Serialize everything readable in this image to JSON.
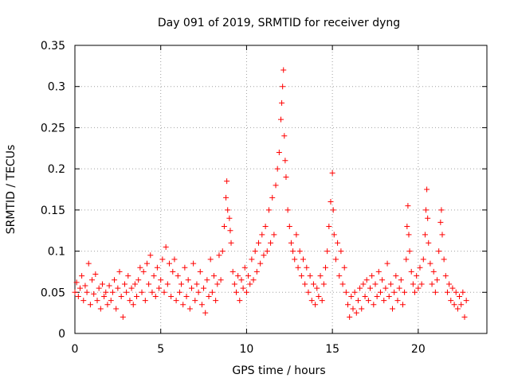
{
  "chart_data": {
    "type": "scatter",
    "title": "Day 091 of 2019, SRMTID for receiver dyng",
    "xlabel": "GPS time / hours",
    "ylabel": "SRMTID / TECUs",
    "xlim": [
      0,
      24
    ],
    "ylim": [
      0,
      0.35
    ],
    "grid": true,
    "marker": "+",
    "color": "#ff0000",
    "x_ticks": [
      0,
      5,
      10,
      15,
      20
    ],
    "x_tick_labels": [
      "0",
      "5",
      "10",
      "15",
      "20"
    ],
    "y_ticks": [
      0,
      0.05,
      0.1,
      0.15,
      0.2,
      0.25,
      0.3,
      0.35
    ],
    "y_tick_labels": [
      "0",
      "0.05",
      "0.1",
      "0.15",
      "0.2",
      "0.25",
      "0.3",
      "0.35"
    ],
    "series": [
      {
        "name": "SRMTID",
        "points": [
          [
            0.0,
            0.05
          ],
          [
            0.1,
            0.062
          ],
          [
            0.2,
            0.045
          ],
          [
            0.3,
            0.055
          ],
          [
            0.4,
            0.07
          ],
          [
            0.5,
            0.04
          ],
          [
            0.6,
            0.058
          ],
          [
            0.7,
            0.05
          ],
          [
            0.8,
            0.085
          ],
          [
            0.9,
            0.035
          ],
          [
            1.0,
            0.065
          ],
          [
            1.1,
            0.048
          ],
          [
            1.2,
            0.072
          ],
          [
            1.3,
            0.04
          ],
          [
            1.4,
            0.055
          ],
          [
            1.5,
            0.03
          ],
          [
            1.6,
            0.06
          ],
          [
            1.7,
            0.045
          ],
          [
            1.8,
            0.05
          ],
          [
            1.9,
            0.035
          ],
          [
            2.0,
            0.058
          ],
          [
            2.1,
            0.04
          ],
          [
            2.2,
            0.05
          ],
          [
            2.3,
            0.065
          ],
          [
            2.4,
            0.03
          ],
          [
            2.5,
            0.055
          ],
          [
            2.6,
            0.075
          ],
          [
            2.7,
            0.045
          ],
          [
            2.8,
            0.02
          ],
          [
            2.9,
            0.06
          ],
          [
            3.0,
            0.05
          ],
          [
            3.1,
            0.07
          ],
          [
            3.2,
            0.04
          ],
          [
            3.3,
            0.055
          ],
          [
            3.4,
            0.035
          ],
          [
            3.5,
            0.06
          ],
          [
            3.6,
            0.045
          ],
          [
            3.7,
            0.065
          ],
          [
            3.8,
            0.08
          ],
          [
            3.9,
            0.05
          ],
          [
            4.0,
            0.075
          ],
          [
            4.1,
            0.04
          ],
          [
            4.2,
            0.085
          ],
          [
            4.3,
            0.06
          ],
          [
            4.4,
            0.095
          ],
          [
            4.5,
            0.05
          ],
          [
            4.6,
            0.07
          ],
          [
            4.7,
            0.045
          ],
          [
            4.8,
            0.08
          ],
          [
            4.9,
            0.055
          ],
          [
            5.0,
            0.065
          ],
          [
            5.1,
            0.09
          ],
          [
            5.2,
            0.05
          ],
          [
            5.3,
            0.105
          ],
          [
            5.4,
            0.06
          ],
          [
            5.5,
            0.085
          ],
          [
            5.6,
            0.045
          ],
          [
            5.7,
            0.075
          ],
          [
            5.8,
            0.09
          ],
          [
            5.9,
            0.04
          ],
          [
            6.0,
            0.07
          ],
          [
            6.1,
            0.05
          ],
          [
            6.2,
            0.06
          ],
          [
            6.3,
            0.035
          ],
          [
            6.4,
            0.08
          ],
          [
            6.5,
            0.045
          ],
          [
            6.6,
            0.065
          ],
          [
            6.7,
            0.03
          ],
          [
            6.8,
            0.055
          ],
          [
            6.9,
            0.085
          ],
          [
            7.0,
            0.04
          ],
          [
            7.1,
            0.06
          ],
          [
            7.2,
            0.05
          ],
          [
            7.3,
            0.075
          ],
          [
            7.4,
            0.035
          ],
          [
            7.5,
            0.055
          ],
          [
            7.6,
            0.025
          ],
          [
            7.7,
            0.065
          ],
          [
            7.8,
            0.045
          ],
          [
            7.9,
            0.09
          ],
          [
            8.0,
            0.05
          ],
          [
            8.1,
            0.07
          ],
          [
            8.2,
            0.04
          ],
          [
            8.3,
            0.06
          ],
          [
            8.4,
            0.095
          ],
          [
            8.5,
            0.065
          ],
          [
            8.6,
            0.1
          ],
          [
            8.7,
            0.13
          ],
          [
            8.8,
            0.165
          ],
          [
            8.85,
            0.185
          ],
          [
            8.9,
            0.15
          ],
          [
            9.0,
            0.14
          ],
          [
            9.05,
            0.125
          ],
          [
            9.1,
            0.11
          ],
          [
            9.2,
            0.075
          ],
          [
            9.3,
            0.06
          ],
          [
            9.4,
            0.05
          ],
          [
            9.5,
            0.07
          ],
          [
            9.6,
            0.04
          ],
          [
            9.7,
            0.065
          ],
          [
            9.8,
            0.055
          ],
          [
            9.9,
            0.08
          ],
          [
            10.0,
            0.05
          ],
          [
            10.1,
            0.07
          ],
          [
            10.2,
            0.06
          ],
          [
            10.3,
            0.09
          ],
          [
            10.4,
            0.065
          ],
          [
            10.5,
            0.1
          ],
          [
            10.6,
            0.075
          ],
          [
            10.7,
            0.11
          ],
          [
            10.8,
            0.085
          ],
          [
            10.9,
            0.12
          ],
          [
            11.0,
            0.095
          ],
          [
            11.1,
            0.13
          ],
          [
            11.2,
            0.1
          ],
          [
            11.3,
            0.15
          ],
          [
            11.4,
            0.11
          ],
          [
            11.5,
            0.165
          ],
          [
            11.6,
            0.12
          ],
          [
            11.7,
            0.18
          ],
          [
            11.8,
            0.2
          ],
          [
            11.9,
            0.22
          ],
          [
            12.0,
            0.26
          ],
          [
            12.05,
            0.28
          ],
          [
            12.1,
            0.3
          ],
          [
            12.15,
            0.32
          ],
          [
            12.2,
            0.24
          ],
          [
            12.25,
            0.21
          ],
          [
            12.3,
            0.19
          ],
          [
            12.4,
            0.15
          ],
          [
            12.5,
            0.13
          ],
          [
            12.6,
            0.11
          ],
          [
            12.7,
            0.1
          ],
          [
            12.8,
            0.09
          ],
          [
            12.9,
            0.12
          ],
          [
            13.0,
            0.08
          ],
          [
            13.1,
            0.1
          ],
          [
            13.2,
            0.07
          ],
          [
            13.3,
            0.09
          ],
          [
            13.4,
            0.06
          ],
          [
            13.5,
            0.08
          ],
          [
            13.6,
            0.05
          ],
          [
            13.7,
            0.07
          ],
          [
            13.8,
            0.04
          ],
          [
            13.9,
            0.06
          ],
          [
            14.0,
            0.035
          ],
          [
            14.1,
            0.055
          ],
          [
            14.2,
            0.045
          ],
          [
            14.3,
            0.07
          ],
          [
            14.4,
            0.04
          ],
          [
            14.5,
            0.06
          ],
          [
            14.6,
            0.08
          ],
          [
            14.7,
            0.1
          ],
          [
            14.8,
            0.13
          ],
          [
            14.9,
            0.16
          ],
          [
            15.0,
            0.195
          ],
          [
            15.05,
            0.15
          ],
          [
            15.1,
            0.12
          ],
          [
            15.2,
            0.09
          ],
          [
            15.3,
            0.11
          ],
          [
            15.4,
            0.07
          ],
          [
            15.5,
            0.1
          ],
          [
            15.6,
            0.06
          ],
          [
            15.7,
            0.08
          ],
          [
            15.8,
            0.05
          ],
          [
            15.9,
            0.035
          ],
          [
            16.0,
            0.02
          ],
          [
            16.1,
            0.045
          ],
          [
            16.2,
            0.03
          ],
          [
            16.3,
            0.05
          ],
          [
            16.4,
            0.025
          ],
          [
            16.5,
            0.04
          ],
          [
            16.6,
            0.055
          ],
          [
            16.7,
            0.03
          ],
          [
            16.8,
            0.06
          ],
          [
            16.9,
            0.045
          ],
          [
            17.0,
            0.065
          ],
          [
            17.1,
            0.04
          ],
          [
            17.2,
            0.055
          ],
          [
            17.3,
            0.07
          ],
          [
            17.4,
            0.035
          ],
          [
            17.5,
            0.06
          ],
          [
            17.6,
            0.045
          ],
          [
            17.7,
            0.075
          ],
          [
            17.8,
            0.05
          ],
          [
            17.9,
            0.065
          ],
          [
            18.0,
            0.04
          ],
          [
            18.1,
            0.055
          ],
          [
            18.2,
            0.085
          ],
          [
            18.3,
            0.045
          ],
          [
            18.4,
            0.06
          ],
          [
            18.5,
            0.03
          ],
          [
            18.6,
            0.05
          ],
          [
            18.7,
            0.07
          ],
          [
            18.8,
            0.04
          ],
          [
            18.9,
            0.055
          ],
          [
            19.0,
            0.065
          ],
          [
            19.1,
            0.035
          ],
          [
            19.2,
            0.05
          ],
          [
            19.3,
            0.09
          ],
          [
            19.35,
            0.13
          ],
          [
            19.4,
            0.155
          ],
          [
            19.45,
            0.12
          ],
          [
            19.5,
            0.1
          ],
          [
            19.6,
            0.075
          ],
          [
            19.7,
            0.06
          ],
          [
            19.8,
            0.05
          ],
          [
            19.9,
            0.07
          ],
          [
            20.0,
            0.055
          ],
          [
            20.1,
            0.08
          ],
          [
            20.2,
            0.06
          ],
          [
            20.3,
            0.09
          ],
          [
            20.4,
            0.12
          ],
          [
            20.45,
            0.15
          ],
          [
            20.5,
            0.175
          ],
          [
            20.55,
            0.14
          ],
          [
            20.6,
            0.11
          ],
          [
            20.7,
            0.085
          ],
          [
            20.8,
            0.06
          ],
          [
            20.9,
            0.075
          ],
          [
            21.0,
            0.05
          ],
          [
            21.1,
            0.065
          ],
          [
            21.2,
            0.1
          ],
          [
            21.3,
            0.135
          ],
          [
            21.35,
            0.15
          ],
          [
            21.4,
            0.12
          ],
          [
            21.5,
            0.09
          ],
          [
            21.6,
            0.07
          ],
          [
            21.7,
            0.05
          ],
          [
            21.8,
            0.06
          ],
          [
            21.9,
            0.04
          ],
          [
            22.0,
            0.055
          ],
          [
            22.1,
            0.035
          ],
          [
            22.2,
            0.05
          ],
          [
            22.3,
            0.03
          ],
          [
            22.4,
            0.045
          ],
          [
            22.5,
            0.035
          ],
          [
            22.6,
            0.05
          ],
          [
            22.7,
            0.02
          ],
          [
            22.8,
            0.04
          ]
        ]
      }
    ]
  }
}
